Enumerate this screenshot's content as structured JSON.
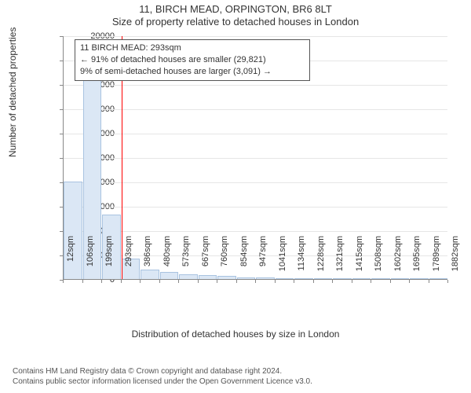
{
  "title": "11, BIRCH MEAD, ORPINGTON, BR6 8LT",
  "subtitle": "Size of property relative to detached houses in London",
  "chart": {
    "type": "histogram",
    "background_color": "#ffffff",
    "grid_color": "#e6e6e6",
    "axis_color": "#888888",
    "tick_fontsize": 11,
    "label_fontsize": 12,
    "title_fontsize": 13,
    "y_axis": {
      "label": "Number of detached properties",
      "min": 0,
      "max": 20000,
      "tick_step": 2000,
      "ticks": [
        0,
        2000,
        4000,
        6000,
        8000,
        10000,
        12000,
        14000,
        16000,
        18000,
        20000
      ]
    },
    "x_axis": {
      "label": "Distribution of detached houses by size in London",
      "ticks": [
        "12sqm",
        "106sqm",
        "199sqm",
        "293sqm",
        "386sqm",
        "480sqm",
        "573sqm",
        "667sqm",
        "760sqm",
        "854sqm",
        "947sqm",
        "1041sqm",
        "1134sqm",
        "1228sqm",
        "1321sqm",
        "1415sqm",
        "1508sqm",
        "1602sqm",
        "1695sqm",
        "1789sqm",
        "1882sqm"
      ]
    },
    "bars": {
      "fill_color": "#dbe7f5",
      "stroke_color": "#a9c3e0",
      "stroke_width": 1,
      "values": [
        8000,
        16600,
        5300,
        1700,
        800,
        580,
        400,
        320,
        240,
        160,
        120,
        80,
        60,
        40,
        20,
        20,
        20,
        20,
        20,
        20
      ]
    },
    "marker": {
      "x_index": 3,
      "color": "#ff0000",
      "line_width": 1
    },
    "annotation": {
      "lines": [
        "11 BIRCH MEAD: 293sqm",
        "← 91% of detached houses are smaller (29,821)",
        "9% of semi-detached houses are larger (3,091) →"
      ],
      "border_color": "#555555",
      "background_color": "#ffffff",
      "fontsize": 11
    }
  },
  "footer": {
    "line1": "Contains HM Land Registry data © Crown copyright and database right 2024.",
    "line2": "Contains public sector information licensed under the Open Government Licence v3.0."
  }
}
